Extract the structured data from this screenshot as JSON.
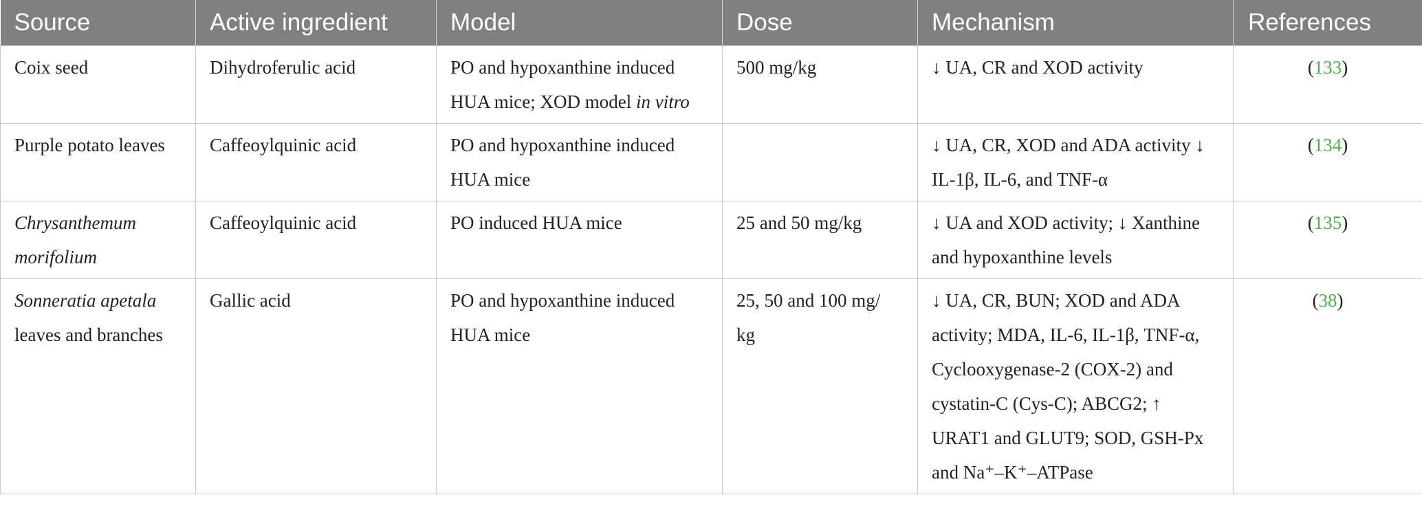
{
  "headers": [
    "Source",
    "Active ingredient",
    "Model",
    "Dose",
    "Mechanism",
    "References"
  ],
  "rows": [
    {
      "source": "Coix seed",
      "source_italic": false,
      "ingredient": "Dihydroferulic acid",
      "model_line1": "PO and hypoxanthine induced",
      "model_line2_prefix": "HUA mice; XOD model ",
      "model_line2_italic": "in vitro",
      "dose": "500 mg/kg",
      "mechanism": "↓ UA, CR and XOD activity",
      "ref": "133"
    },
    {
      "source": "Purple potato leaves",
      "ingredient": "Caffeoylquinic acid",
      "model_line1": "PO and hypoxanthine induced",
      "model_line2": "HUA mice",
      "dose": "",
      "mechanism_line1": "↓ UA, CR, XOD and ADA activity ↓",
      "mechanism_line2": "IL-1β, IL-6, and TNF-α",
      "ref": "134"
    },
    {
      "source_line1": "Chrysanthemum",
      "source_line2": "morifolium",
      "ingredient": "Caffeoylquinic acid",
      "model": "PO induced HUA mice",
      "dose": "25 and 50 mg/kg",
      "mechanism_line1": "↓ UA and XOD activity; ↓ Xanthine",
      "mechanism_line2": "and hypoxanthine levels",
      "ref": "135"
    },
    {
      "source_italic_part": "Sonneratia apetala",
      "source_line2": "leaves and branches",
      "ingredient": "Gallic acid",
      "model_line1": "PO and hypoxanthine induced",
      "model_line2": "HUA mice",
      "dose_line1": "25, 50 and 100 mg/",
      "dose_line2": "kg",
      "mechanism_lines": [
        "↓ UA, CR, BUN; XOD and ADA",
        "activity; MDA, IL-6, IL-1β, TNF-α,",
        "Cyclooxygenase-2 (COX-2) and",
        "cystatin-C (Cys-C); ABCG2; ↑",
        "URAT1 and GLUT9; SOD, GSH-Px",
        "and Na⁺–K⁺–ATPase"
      ],
      "ref": "38"
    }
  ],
  "colors": {
    "header_bg": "#808080",
    "header_text": "#ffffff",
    "ref_link": "#4caf50",
    "body_text": "#222222"
  }
}
